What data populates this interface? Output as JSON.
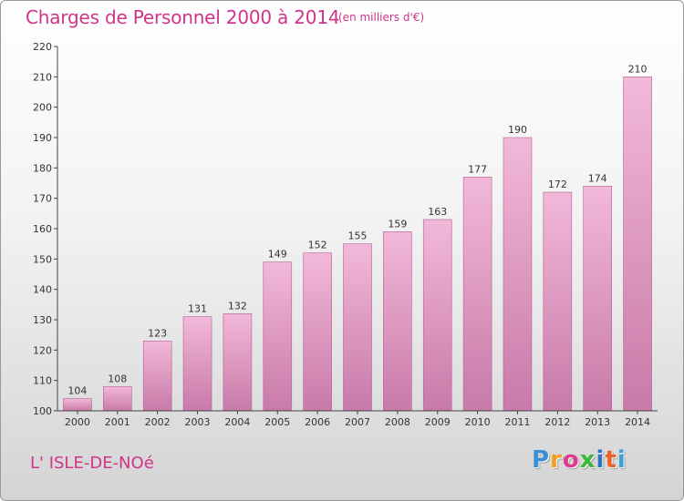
{
  "title": "Charges de Personnel 2000 à 2014",
  "unit_note": "(en milliers d'€)",
  "commune": "L' ISLE-DE-NOé",
  "logo": {
    "letters": [
      "P",
      "r",
      "o",
      "x",
      "i",
      "t",
      "i"
    ],
    "colors": [
      "#3a8fd6",
      "#f0a020",
      "#e03a8c",
      "#3cb83c",
      "#2d74c4",
      "#e8642a",
      "#3aa0d8"
    ]
  },
  "colors": {
    "bar_top": "#f2b8d9",
    "bar_bottom": "#c87aa8",
    "bar_stroke": "#b06492",
    "text": "#d0348a"
  },
  "chart_data": {
    "type": "bar",
    "categories": [
      "2000",
      "2001",
      "2002",
      "2003",
      "2004",
      "2005",
      "2006",
      "2007",
      "2008",
      "2009",
      "2010",
      "2011",
      "2012",
      "2013",
      "2014"
    ],
    "values": [
      104,
      108,
      123,
      131,
      132,
      149,
      152,
      155,
      159,
      163,
      177,
      190,
      172,
      174,
      210
    ],
    "title": "Charges de Personnel 2000 à 2014",
    "xlabel": "",
    "ylabel": "",
    "ylim": [
      100,
      220
    ],
    "yticks": [
      100,
      110,
      120,
      130,
      140,
      150,
      160,
      170,
      180,
      190,
      200,
      210,
      220
    ],
    "data_labels": true,
    "grid": false,
    "legend": "none"
  }
}
